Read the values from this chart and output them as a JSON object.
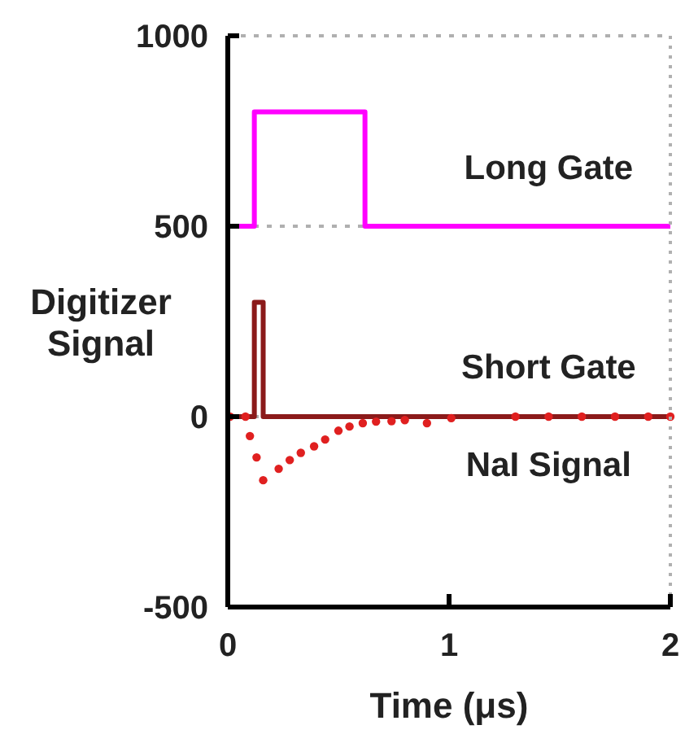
{
  "chart_data": {
    "type": "line",
    "xlabel": "Time (μs)",
    "ylabel": "Digitizer Signal",
    "xlim": [
      0,
      2
    ],
    "ylim": [
      -500,
      1000
    ],
    "xticks": [
      0,
      1,
      2
    ],
    "yticks": [
      -500,
      0,
      500,
      1000
    ],
    "grid": "y",
    "legend": false,
    "series": [
      {
        "name": "Long Gate",
        "color": "#ff00ff",
        "x": [
          0,
          0.12,
          0.12,
          0.62,
          0.62,
          2
        ],
        "values": [
          500,
          500,
          800,
          800,
          500,
          500
        ]
      },
      {
        "name": "Short Gate",
        "color": "#8b1a1a",
        "x": [
          0,
          0.12,
          0.12,
          0.16,
          0.16,
          2
        ],
        "values": [
          0,
          0,
          300,
          300,
          0,
          0
        ]
      },
      {
        "name": "NaI Signal",
        "type": "scatter",
        "marker": "circle",
        "color": "#e02020",
        "x": [
          0.01,
          0.08,
          0.1,
          0.13,
          0.16,
          0.23,
          0.28,
          0.33,
          0.39,
          0.44,
          0.5,
          0.55,
          0.61,
          0.67,
          0.74,
          0.8,
          0.9,
          1.01,
          1.3,
          1.45,
          1.6,
          1.75,
          1.9,
          2.0
        ],
        "values": [
          0,
          0,
          -51,
          -107,
          -167,
          -137,
          -114,
          -95,
          -78,
          -60,
          -37,
          -26,
          -17,
          -13,
          -12,
          -9,
          -17,
          -4,
          0,
          0,
          0,
          0,
          0,
          0
        ]
      }
    ]
  }
}
